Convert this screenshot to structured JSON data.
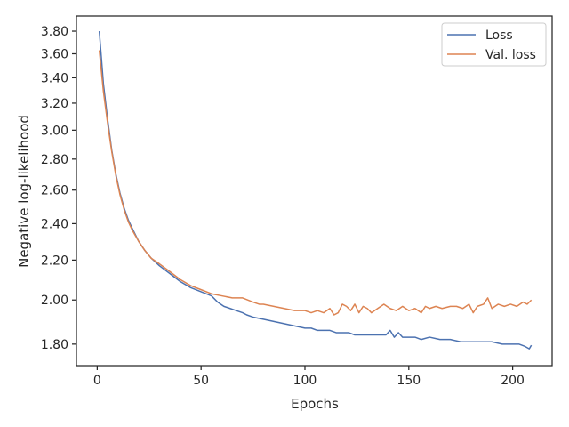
{
  "chart_data": {
    "type": "line",
    "title": "",
    "xlabel": "Epochs",
    "ylabel": "Negative log-likelihood",
    "yscale": "log",
    "xlim": [
      -10,
      219
    ],
    "ylim": [
      1.71,
      3.94
    ],
    "grid": false,
    "legend_placement": "top-right",
    "x_ticks": [
      "0",
      "50",
      "100",
      "150",
      "200"
    ],
    "y_ticks": [
      "1.80",
      "2.00",
      "2.20",
      "2.40",
      "2.60",
      "2.80",
      "3.00",
      "3.20",
      "3.40",
      "3.60",
      "3.80"
    ],
    "series": [
      {
        "name": "Loss",
        "color": "#4c72b0",
        "x": [
          1,
          3,
          5,
          7,
          9,
          11,
          13,
          15,
          17,
          20,
          23,
          26,
          30,
          35,
          40,
          45,
          50,
          55,
          58,
          61,
          64,
          67,
          70,
          72,
          75,
          80,
          85,
          90,
          95,
          100,
          103,
          106,
          109,
          112,
          115,
          118,
          121,
          124,
          127,
          130,
          133,
          136,
          139,
          141,
          143,
          145,
          147,
          150,
          153,
          156,
          160,
          165,
          170,
          175,
          180,
          185,
          190,
          195,
          200,
          203,
          206,
          208,
          209
        ],
        "y": [
          3.8,
          3.35,
          3.08,
          2.86,
          2.7,
          2.58,
          2.49,
          2.42,
          2.37,
          2.3,
          2.25,
          2.21,
          2.17,
          2.13,
          2.09,
          2.06,
          2.04,
          2.02,
          1.99,
          1.97,
          1.96,
          1.95,
          1.94,
          1.93,
          1.92,
          1.91,
          1.9,
          1.89,
          1.88,
          1.87,
          1.87,
          1.86,
          1.86,
          1.86,
          1.85,
          1.85,
          1.85,
          1.84,
          1.84,
          1.84,
          1.84,
          1.84,
          1.84,
          1.86,
          1.83,
          1.85,
          1.83,
          1.83,
          1.83,
          1.82,
          1.83,
          1.82,
          1.82,
          1.81,
          1.81,
          1.81,
          1.81,
          1.8,
          1.8,
          1.8,
          1.79,
          1.78,
          1.795
        ]
      },
      {
        "name": "Val. loss",
        "color": "#dd8452",
        "x": [
          1,
          3,
          5,
          7,
          9,
          11,
          13,
          15,
          17,
          20,
          23,
          26,
          30,
          35,
          40,
          45,
          50,
          55,
          60,
          65,
          70,
          75,
          78,
          80,
          85,
          90,
          95,
          100,
          103,
          106,
          109,
          112,
          114,
          116,
          118,
          120,
          122,
          124,
          126,
          128,
          130,
          132,
          135,
          138,
          141,
          144,
          147,
          150,
          153,
          156,
          158,
          160,
          163,
          166,
          170,
          173,
          176,
          179,
          181,
          183,
          186,
          188,
          190,
          193,
          196,
          199,
          202,
          205,
          207,
          209
        ],
        "y": [
          3.63,
          3.29,
          3.05,
          2.85,
          2.69,
          2.57,
          2.48,
          2.41,
          2.36,
          2.3,
          2.25,
          2.21,
          2.18,
          2.14,
          2.1,
          2.07,
          2.05,
          2.03,
          2.02,
          2.01,
          2.01,
          1.99,
          1.98,
          1.98,
          1.97,
          1.96,
          1.95,
          1.95,
          1.94,
          1.95,
          1.94,
          1.96,
          1.93,
          1.94,
          1.98,
          1.97,
          1.95,
          1.98,
          1.94,
          1.97,
          1.96,
          1.94,
          1.96,
          1.98,
          1.96,
          1.95,
          1.97,
          1.95,
          1.96,
          1.94,
          1.97,
          1.96,
          1.97,
          1.96,
          1.97,
          1.97,
          1.96,
          1.98,
          1.94,
          1.97,
          1.98,
          2.01,
          1.96,
          1.98,
          1.97,
          1.98,
          1.97,
          1.99,
          1.98,
          2.0
        ]
      }
    ]
  }
}
